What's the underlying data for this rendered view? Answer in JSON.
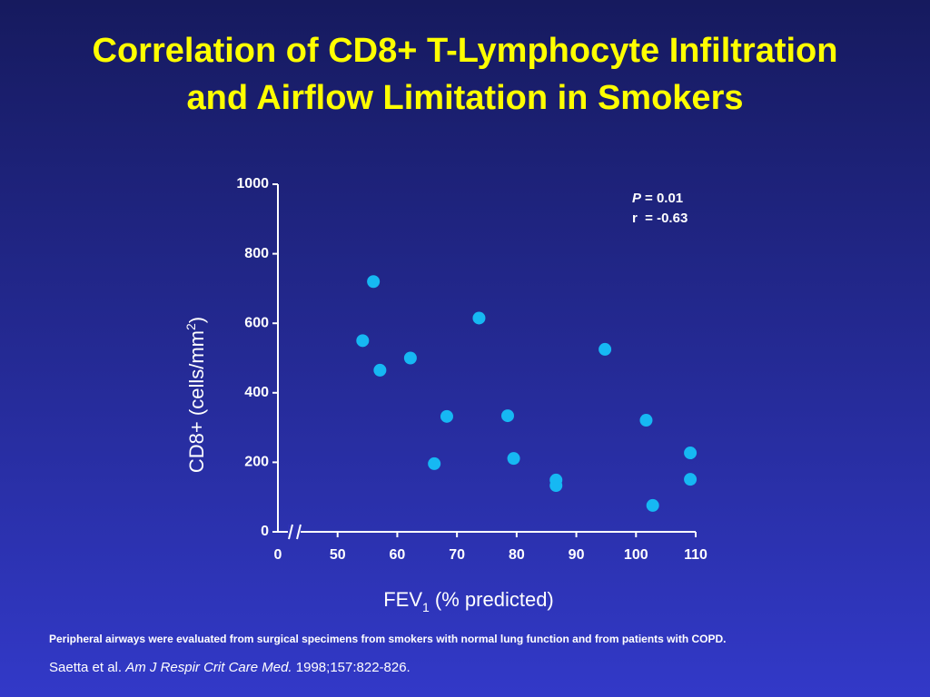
{
  "chart_data": {
    "type": "scatter",
    "title": [
      "Correlation of CD8+ T-Lymphocyte Infiltration",
      "and Airflow Limitation in Smokers"
    ],
    "x_label": {
      "text": "FEV",
      "sub": "1",
      "rest": " (% predicted)"
    },
    "y_label": {
      "text": "CD8+ (cells/mm",
      "sup": "2",
      "rest": ")"
    },
    "annotation": {
      "p_symbol": "P",
      "p_text": "= 0.01",
      "r_text": "r  = -0.63"
    },
    "x": [
      56.0,
      54.2,
      57.1,
      62.2,
      73.7,
      68.3,
      66.2,
      78.5,
      79.5,
      86.6,
      86.6,
      94.8,
      101.7,
      102.8,
      109.1,
      109.1
    ],
    "values": [
      720,
      550,
      465,
      500,
      615,
      332,
      196,
      334,
      211,
      149,
      133,
      525,
      321,
      76,
      227,
      151
    ],
    "color": "#16b8f3",
    "xlim": [
      0,
      110
    ],
    "x_break": [
      0,
      40
    ],
    "xticks": [
      0,
      50,
      60,
      70,
      80,
      90,
      100,
      110
    ],
    "ylim": [
      0,
      1000
    ],
    "yticks": [
      0,
      200,
      400,
      600,
      800,
      1000
    ],
    "footnote": "Peripheral airways were evaluated from surgical specimens from smokers with normal lung function and from patients with COPD.",
    "citation": {
      "authors": "Saetta et al. ",
      "journal": "Am J Respir Crit Care Med.",
      "details": " 1998;157:822-826."
    }
  }
}
